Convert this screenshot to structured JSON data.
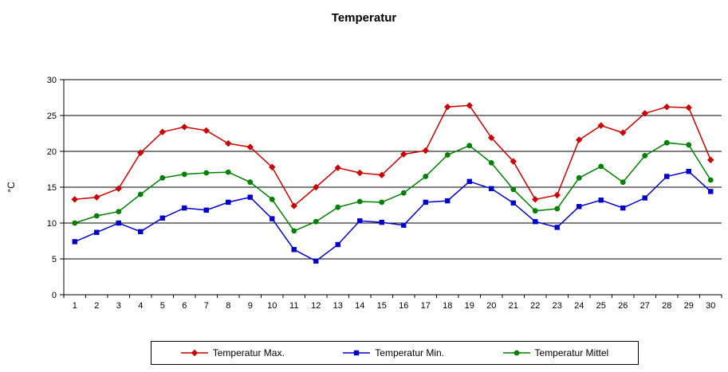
{
  "chart_data": {
    "type": "line",
    "title": "Temperatur",
    "ylabel": "°C",
    "ylim": [
      0,
      30
    ],
    "yticks": [
      0,
      5,
      10,
      15,
      20,
      25,
      30
    ],
    "grid": true,
    "legend_position": "bottom",
    "x": [
      1,
      2,
      3,
      4,
      5,
      6,
      7,
      8,
      9,
      10,
      11,
      12,
      13,
      14,
      15,
      16,
      17,
      18,
      19,
      20,
      21,
      22,
      23,
      24,
      25,
      26,
      27,
      28,
      29,
      30
    ],
    "series": [
      {
        "name": "Temperatur Max.",
        "color": "#cc0000",
        "marker": "diamond",
        "values": [
          13.3,
          13.6,
          14.8,
          19.8,
          22.7,
          23.4,
          22.9,
          21.1,
          20.6,
          17.8,
          12.4,
          15.0,
          17.7,
          17.0,
          16.7,
          19.6,
          20.1,
          26.2,
          26.4,
          21.9,
          18.6,
          13.3,
          13.9,
          21.6,
          23.6,
          22.6,
          25.3,
          26.2,
          26.1,
          18.8
        ]
      },
      {
        "name": "Temperatur Min.",
        "color": "#0000cc",
        "marker": "square",
        "values": [
          7.4,
          8.7,
          10.0,
          8.8,
          10.7,
          12.1,
          11.8,
          12.9,
          13.6,
          10.6,
          6.3,
          4.7,
          7.0,
          10.3,
          10.1,
          9.7,
          12.9,
          13.1,
          15.8,
          14.8,
          12.8,
          10.2,
          9.4,
          12.3,
          13.2,
          12.1,
          13.5,
          16.5,
          17.2,
          14.4
        ]
      },
      {
        "name": "Temperatur Mittel",
        "color": "#008000",
        "marker": "circle",
        "values": [
          10.0,
          11.0,
          11.6,
          14.0,
          16.3,
          16.8,
          17.0,
          17.1,
          15.7,
          13.3,
          8.9,
          10.2,
          12.2,
          13.0,
          12.9,
          14.2,
          16.5,
          19.5,
          20.8,
          18.4,
          14.7,
          11.7,
          12.0,
          16.3,
          17.9,
          15.7,
          19.4,
          21.2,
          20.9,
          16.0
        ]
      }
    ]
  }
}
